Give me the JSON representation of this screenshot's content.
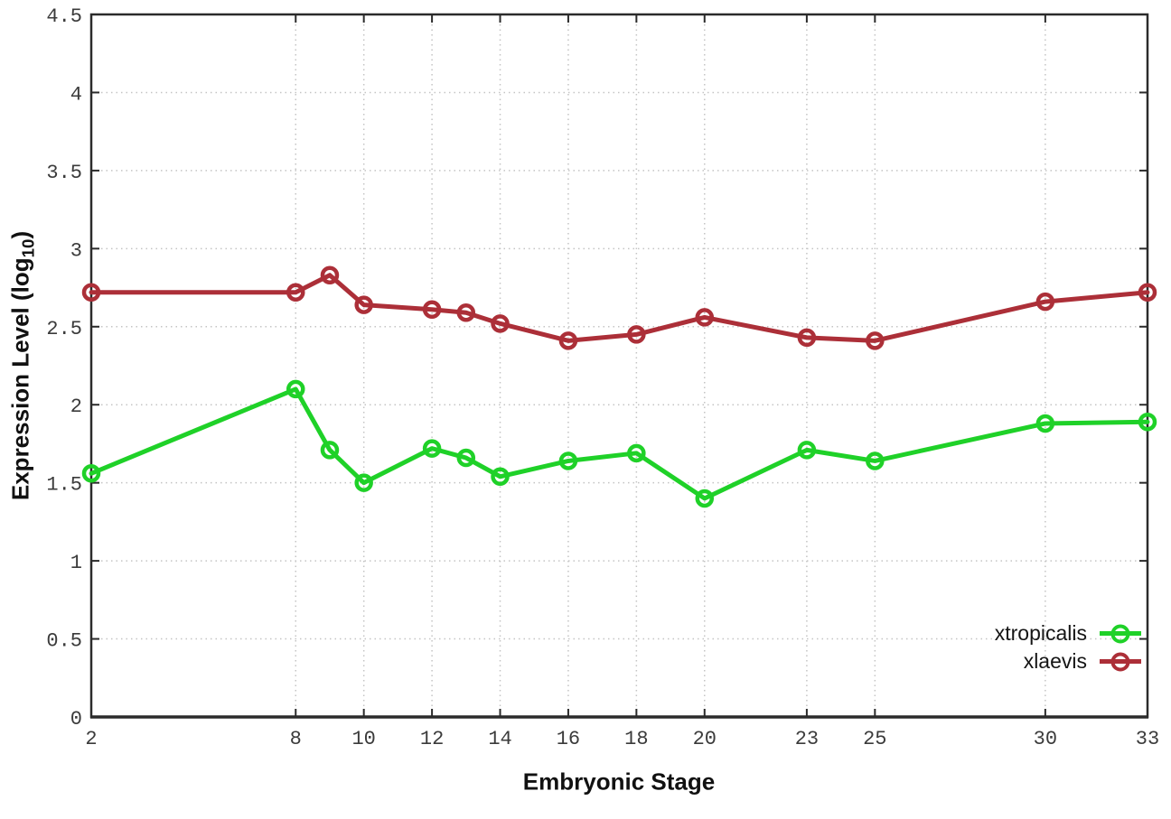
{
  "chart_data": {
    "type": "line",
    "title": "",
    "xlabel": "Embryonic Stage",
    "ylabel": "Expression Level (log10)",
    "xlim": [
      2,
      33
    ],
    "ylim": [
      0,
      4.5
    ],
    "x_ticks": [
      2,
      8,
      10,
      12,
      14,
      16,
      18,
      20,
      23,
      25,
      30,
      33
    ],
    "y_ticks": [
      0,
      0.5,
      1,
      1.5,
      2,
      2.5,
      3,
      3.5,
      4,
      4.5
    ],
    "y_tick_labels": [
      "0",
      "0.5",
      "1",
      "1.5",
      "2",
      "2.5",
      "3",
      "3.5",
      "4",
      "4.5"
    ],
    "grid": true,
    "legend_position": "bottom-right",
    "marker": "open-circle",
    "x": [
      2,
      8,
      9,
      10,
      12,
      13,
      14,
      16,
      18,
      20,
      23,
      25,
      30,
      33
    ],
    "series": [
      {
        "name": "xtropicalis",
        "color": "#1fd128",
        "values": [
          1.56,
          2.1,
          1.71,
          1.5,
          1.72,
          1.66,
          1.54,
          1.64,
          1.69,
          1.4,
          1.71,
          1.64,
          1.88,
          1.89
        ]
      },
      {
        "name": "xlaevis",
        "color": "#ac2f38",
        "values": [
          2.72,
          2.72,
          2.83,
          2.64,
          2.61,
          2.59,
          2.52,
          2.41,
          2.45,
          2.56,
          2.43,
          2.41,
          2.66,
          2.72
        ]
      }
    ]
  },
  "labels": {
    "xlabel": "Embryonic Stage",
    "ylabel_prefix": "Expression Level (log",
    "ylabel_sub": "10",
    "ylabel_suffix": ")",
    "legend": [
      "xtropicalis",
      "xlaevis"
    ]
  },
  "colors": {
    "background": "#ffffff",
    "axis": "#2b2b2b",
    "grid": "#c4c4c4",
    "tick_text": "#3b3b3b"
  }
}
